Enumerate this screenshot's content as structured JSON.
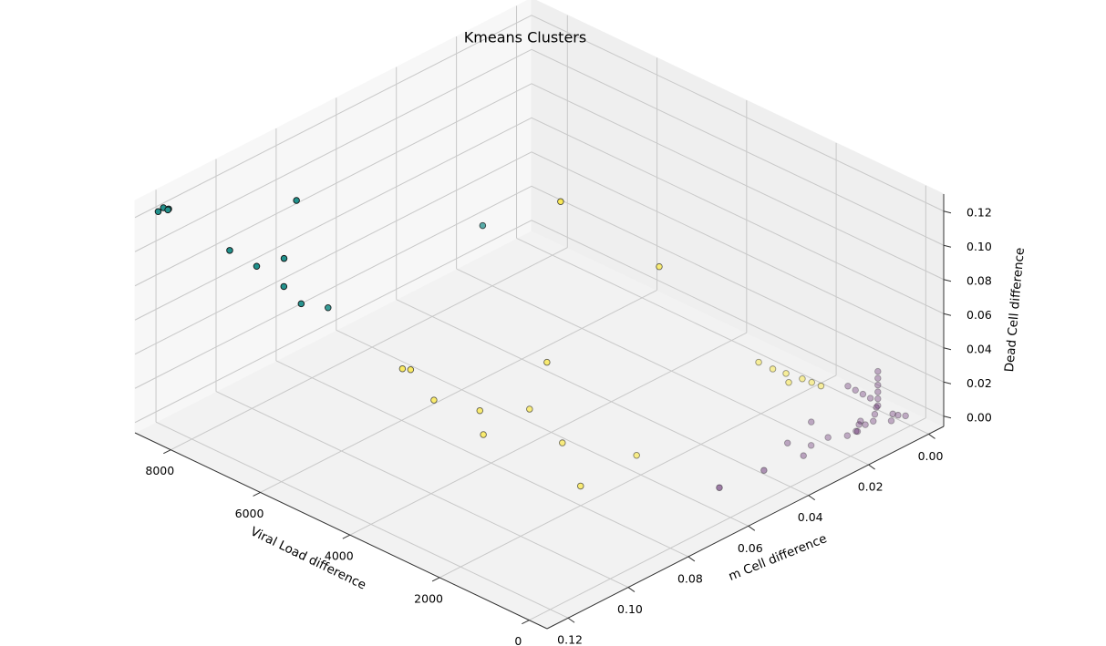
{
  "chart_data": {
    "type": "scatter3d",
    "title": "Kmeans Clusters",
    "xlabel": "Viral Load difference",
    "ylabel": "m Cell difference",
    "zlabel": "Dead Cell difference",
    "xlim": [
      -400,
      8800
    ],
    "ylim": [
      -0.005,
      0.127
    ],
    "zlim": [
      -0.006,
      0.13
    ],
    "xticks": [
      0,
      2000,
      4000,
      6000,
      8000
    ],
    "yticks": [
      {
        "value": 0,
        "label": "0.00"
      },
      {
        "value": 0.02,
        "label": "0.02"
      },
      {
        "value": 0.04,
        "label": "0.04"
      },
      {
        "value": 0.06,
        "label": "0.06"
      },
      {
        "value": 0.08,
        "label": "0.08"
      },
      {
        "value": 0.1,
        "label": "0.10"
      },
      {
        "value": 0.12,
        "label": "0.12"
      }
    ],
    "zticks": [
      {
        "value": 0,
        "label": "0.00"
      },
      {
        "value": 0.02,
        "label": "0.02"
      },
      {
        "value": 0.04,
        "label": "0.04"
      },
      {
        "value": 0.06,
        "label": "0.06"
      },
      {
        "value": 0.08,
        "label": "0.08"
      },
      {
        "value": 0.1,
        "label": "0.10"
      },
      {
        "value": 0.12,
        "label": "0.12"
      }
    ],
    "grid": true,
    "series": [
      {
        "color": "#440154",
        "x": [
          650,
          527,
          403,
          547,
          873,
          705,
          532,
          350,
          350,
          390,
          600,
          600,
          600,
          600,
          600,
          600,
          500,
          400,
          300,
          200,
          100,
          700,
          800,
          900,
          1000,
          450,
          350,
          250,
          150,
          50
        ],
        "y": [
          0.054,
          0.041,
          0.0297,
          0.025,
          0.028,
          0.0226,
          0.0196,
          0.0159,
          0.013,
          0.0093,
          0.002,
          0.002,
          0.002,
          0.002,
          0.002,
          0.002,
          0.004,
          0.006,
          0.008,
          0.003,
          0.005,
          0.003,
          0.004,
          0.005,
          0.006,
          0.01,
          0.012,
          0.014,
          0.002,
          0.001
        ],
        "z": [
          -0.002,
          -0.002,
          -0.002,
          -0.002,
          -0.002,
          0.0076,
          -0.002,
          -0.002,
          -0.002,
          -0.002,
          0,
          0.004,
          0.008,
          0.012,
          0.016,
          0.02,
          0.002,
          0.001,
          0,
          0.001,
          0,
          0.004,
          0.006,
          0.008,
          0.01,
          0,
          0.001,
          0,
          0,
          0
        ]
      },
      {
        "color": "#21918c",
        "x": [
          8500,
          8450,
          8550,
          8400,
          7475,
          8160,
          7760,
          7350,
          7220,
          6900,
          6770,
          5800
        ],
        "y": [
          0.122,
          0.121,
          0.123,
          0.122,
          0.093,
          0.105,
          0.102,
          0.099,
          0.101,
          0.1,
          0.093,
          0.056
        ],
        "z": [
          0.125,
          0.124,
          0.123,
          0.125,
          0.116,
          0.089,
          0.082,
          0.089,
          0.076,
          0.069,
          0.062,
          0.089
        ]
      },
      {
        "color": "#fde725",
        "x": [
          4630,
          3100,
          4050,
          6115,
          6000,
          5560,
          4790,
          4470,
          4250,
          3370,
          2230,
          2340,
          1450,
          1135,
          880,
          570,
          380,
          645,
          193
        ],
        "y": [
          0.0475,
          0.0375,
          0.0607,
          0.078,
          0.077,
          0.0758,
          0.072,
          0.0756,
          0.0635,
          0.0657,
          0.058,
          0.075,
          0.029,
          0.029,
          0.0284,
          0.0276,
          0.0273,
          0.031,
          0.027
        ],
        "z": [
          0.11,
          0.082,
          0.035,
          0.021,
          0.021,
          0.0076,
          0.0076,
          0.0008,
          0.0076,
          0.0008,
          0.0008,
          -0.0033,
          0.039,
          0.039,
          0.039,
          0.039,
          0.039,
          0.039,
          0.039
        ]
      }
    ]
  }
}
